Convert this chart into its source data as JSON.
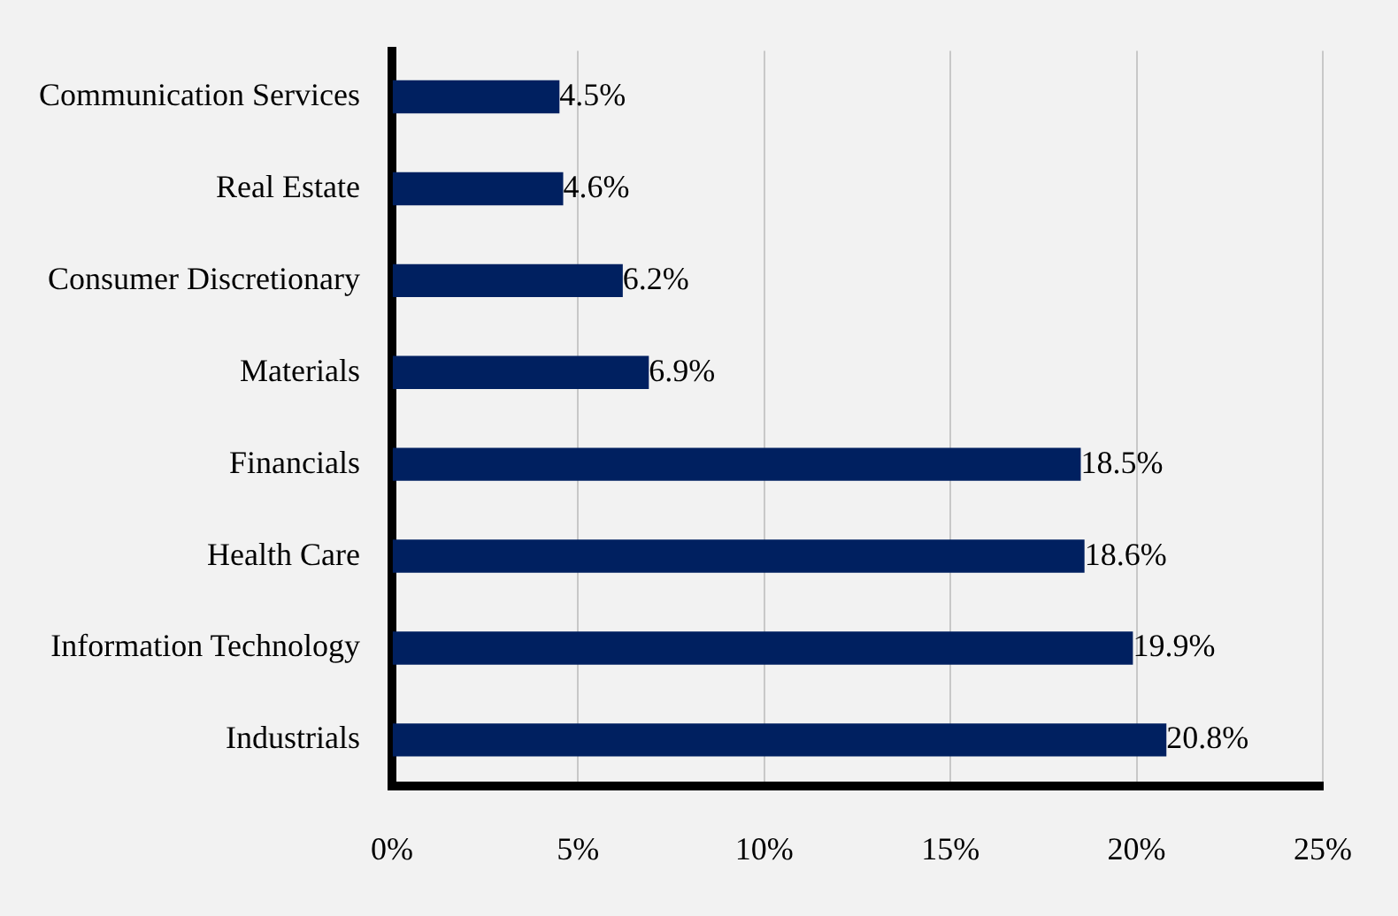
{
  "chart_data": {
    "type": "bar",
    "orientation": "horizontal",
    "categories": [
      "Communication Services",
      "Real Estate",
      "Consumer Discretionary",
      "Materials",
      "Financials",
      "Health Care",
      "Information Technology",
      "Industrials"
    ],
    "values": [
      4.5,
      4.6,
      6.2,
      6.9,
      18.5,
      18.6,
      19.9,
      20.8
    ],
    "value_labels": [
      "4.5%",
      "4.6%",
      "6.2%",
      "6.9%",
      "18.5%",
      "18.6%",
      "19.9%",
      "20.8%"
    ],
    "color": "#002060",
    "xlim": [
      0,
      25
    ],
    "xticks": [
      {
        "value": 0,
        "label": "0%"
      },
      {
        "value": 5,
        "label": "5%"
      },
      {
        "value": 10,
        "label": "10%"
      },
      {
        "value": 15,
        "label": "15%"
      },
      {
        "value": 20,
        "label": "20%"
      },
      {
        "value": 25,
        "label": "25%"
      }
    ],
    "grid": "x",
    "legend": false
  }
}
